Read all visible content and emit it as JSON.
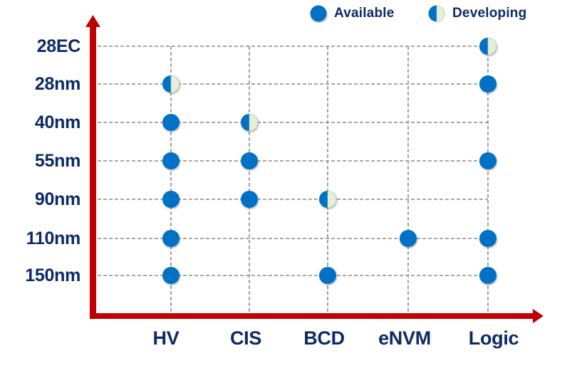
{
  "chart_data": {
    "type": "scatter",
    "title": "",
    "xlabel": "",
    "ylabel": "",
    "categories_x": [
      "HV",
      "CIS",
      "BCD",
      "eNVM",
      "Logic"
    ],
    "categories_y": [
      "28EC",
      "28nm",
      "40nm",
      "55nm",
      "90nm",
      "110nm",
      "150nm"
    ],
    "legend": [
      {
        "name": "Available",
        "style": "full",
        "color": "#0071c5"
      },
      {
        "name": "Developing",
        "style": "half",
        "color": "#0071c5",
        "color2": "#e2f0da"
      }
    ],
    "legend_position": "top-right",
    "grid": "dashed",
    "points": [
      {
        "x": "HV",
        "y": "28nm",
        "status": "Developing"
      },
      {
        "x": "HV",
        "y": "40nm",
        "status": "Available"
      },
      {
        "x": "HV",
        "y": "55nm",
        "status": "Available"
      },
      {
        "x": "HV",
        "y": "90nm",
        "status": "Available"
      },
      {
        "x": "HV",
        "y": "110nm",
        "status": "Available"
      },
      {
        "x": "HV",
        "y": "150nm",
        "status": "Available"
      },
      {
        "x": "CIS",
        "y": "40nm",
        "status": "Developing"
      },
      {
        "x": "CIS",
        "y": "55nm",
        "status": "Available"
      },
      {
        "x": "CIS",
        "y": "90nm",
        "status": "Available"
      },
      {
        "x": "BCD",
        "y": "90nm",
        "status": "Developing"
      },
      {
        "x": "BCD",
        "y": "150nm",
        "status": "Available"
      },
      {
        "x": "eNVM",
        "y": "110nm",
        "status": "Available"
      },
      {
        "x": "Logic",
        "y": "28EC",
        "status": "Developing"
      },
      {
        "x": "Logic",
        "y": "28nm",
        "status": "Available"
      },
      {
        "x": "Logic",
        "y": "55nm",
        "status": "Available"
      },
      {
        "x": "Logic",
        "y": "110nm",
        "status": "Available"
      },
      {
        "x": "Logic",
        "y": "150nm",
        "status": "Available"
      }
    ]
  },
  "colors": {
    "axis": "#c00000",
    "grid": "#8c8c8c",
    "label": "#0d2a66",
    "available": "#0071c5",
    "developing_light": "#e2f0da"
  },
  "legend": {
    "available_label": "Available",
    "developing_label": "Developing"
  },
  "axes": {
    "y_labels": [
      "28EC",
      "28nm",
      "40nm",
      "55nm",
      "90nm",
      "110nm",
      "150nm"
    ],
    "x_labels": [
      "HV",
      "CIS",
      "BCD",
      "eNVM",
      "Logic"
    ]
  }
}
